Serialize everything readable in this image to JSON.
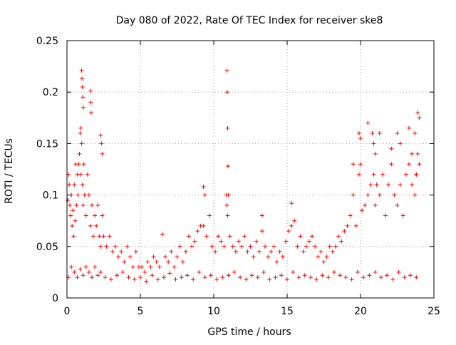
{
  "chart_data": {
    "type": "scatter",
    "title": "Day 080 of 2022, Rate Of TEC Index for receiver ske8",
    "xlabel": "GPS time / hours",
    "ylabel": "ROTI / TECUs",
    "xlim": [
      0,
      25
    ],
    "ylim": [
      0,
      0.25
    ],
    "xticks": [
      0,
      5,
      10,
      15,
      20,
      25
    ],
    "xtick_labels": [
      "0",
      "5",
      "10",
      "15",
      "20",
      "25"
    ],
    "yticks": [
      0,
      0.05,
      0.1,
      0.15,
      0.2,
      0.25
    ],
    "ytick_labels": [
      "0",
      "0.05",
      "0.1",
      "0.15",
      "0.2",
      "0.25"
    ],
    "grid": true,
    "marker": "+",
    "color": "#ff0000",
    "series": [
      {
        "name": "ROTI",
        "x": [
          0.05,
          0.1,
          0.15,
          0.2,
          0.25,
          0.3,
          0.35,
          0.4,
          0.45,
          0.5,
          0.55,
          0.6,
          0.65,
          0.7,
          0.75,
          0.8,
          0.85,
          0.9,
          0.95,
          1.0,
          1.05,
          1.1,
          1.15,
          1.2,
          1.3,
          1.4,
          1.5,
          1.6,
          1.7,
          1.8,
          1.9,
          2.0,
          2.1,
          2.2,
          2.3,
          2.4,
          2.5,
          2.7,
          2.9,
          3.1,
          3.3,
          3.5,
          3.7,
          3.9,
          4.1,
          4.3,
          4.5,
          4.7,
          4.9,
          5.1,
          5.3,
          5.5,
          5.7,
          5.9,
          6.1,
          6.3,
          6.5,
          6.7,
          6.9,
          7.1,
          7.3,
          7.5,
          7.7,
          7.9,
          8.1,
          8.3,
          8.5,
          8.7,
          8.9,
          9.1,
          9.3,
          9.5,
          9.7,
          9.9,
          10.1,
          10.3,
          10.5,
          10.7,
          10.85,
          10.9,
          10.95,
          11.1,
          11.3,
          11.5,
          11.7,
          11.9,
          12.1,
          12.3,
          12.5,
          12.7,
          12.9,
          13.1,
          13.3,
          13.5,
          13.7,
          13.9,
          14.1,
          14.3,
          14.5,
          14.7,
          14.9,
          15.1,
          15.3,
          15.5,
          15.7,
          15.9,
          16.1,
          16.3,
          16.5,
          16.7,
          16.9,
          17.1,
          17.3,
          17.5,
          17.7,
          17.9,
          18.1,
          18.3,
          18.5,
          18.7,
          18.9,
          19.1,
          19.3,
          19.5,
          19.7,
          19.9,
          20.0,
          20.1,
          20.3,
          20.5,
          20.7,
          20.9,
          21.0,
          21.1,
          21.3,
          21.5,
          21.7,
          21.9,
          22.1,
          22.3,
          22.5,
          22.7,
          22.9,
          23.1,
          23.3,
          23.5,
          23.7,
          23.8,
          23.9,
          24.0,
          0.1,
          0.3,
          0.5,
          0.7,
          0.9,
          1.1,
          1.3,
          1.5,
          1.7,
          1.9,
          2.1,
          2.3,
          2.6,
          3.0,
          3.4,
          3.8,
          4.2,
          4.6,
          5.0,
          5.4,
          5.8,
          6.2,
          6.6,
          7.0,
          7.4,
          7.8,
          8.2,
          8.6,
          9.0,
          9.4,
          9.8,
          10.2,
          10.6,
          11.0,
          11.4,
          11.8,
          12.2,
          12.6,
          13.0,
          13.4,
          13.8,
          14.2,
          14.6,
          15.0,
          15.4,
          15.8,
          16.2,
          16.6,
          17.0,
          17.4,
          17.8,
          18.2,
          18.6,
          19.0,
          19.4,
          19.8,
          20.2,
          20.6,
          21.0,
          21.4,
          21.8,
          22.2,
          22.6,
          23.0,
          23.4,
          23.8,
          1.0,
          1.02,
          1.05,
          1.08,
          1.12,
          0.95,
          1.6,
          1.62,
          1.65,
          2.3,
          2.35,
          2.4,
          9.3,
          9.4,
          10.9,
          10.92,
          10.95,
          10.97,
          11.0,
          13.3,
          15.3,
          19.5,
          19.9,
          20.0,
          20.5,
          20.8,
          20.9,
          21.0,
          21.3,
          22.1,
          22.5,
          22.7,
          23.3,
          23.5,
          23.7,
          23.8,
          23.9,
          24.0
        ],
        "y": [
          0.095,
          0.12,
          0.11,
          0.09,
          0.08,
          0.1,
          0.07,
          0.085,
          0.06,
          0.11,
          0.075,
          0.13,
          0.09,
          0.12,
          0.1,
          0.13,
          0.14,
          0.16,
          0.12,
          0.15,
          0.11,
          0.09,
          0.13,
          0.1,
          0.08,
          0.12,
          0.1,
          0.07,
          0.09,
          0.06,
          0.08,
          0.07,
          0.09,
          0.06,
          0.05,
          0.08,
          0.06,
          0.05,
          0.06,
          0.045,
          0.05,
          0.04,
          0.045,
          0.035,
          0.05,
          0.04,
          0.03,
          0.045,
          0.03,
          0.03,
          0.025,
          0.035,
          0.03,
          0.04,
          0.035,
          0.03,
          0.062,
          0.04,
          0.035,
          0.045,
          0.03,
          0.04,
          0.05,
          0.035,
          0.045,
          0.06,
          0.05,
          0.055,
          0.065,
          0.07,
          0.07,
          0.06,
          0.08,
          0.05,
          0.045,
          0.06,
          0.055,
          0.05,
          0.1,
          0.09,
          0.08,
          0.06,
          0.05,
          0.045,
          0.055,
          0.05,
          0.06,
          0.045,
          0.05,
          0.04,
          0.055,
          0.045,
          0.065,
          0.05,
          0.04,
          0.045,
          0.05,
          0.035,
          0.045,
          0.04,
          0.055,
          0.065,
          0.07,
          0.075,
          0.05,
          0.06,
          0.045,
          0.05,
          0.055,
          0.06,
          0.05,
          0.04,
          0.045,
          0.035,
          0.04,
          0.05,
          0.045,
          0.05,
          0.06,
          0.055,
          0.065,
          0.07,
          0.08,
          0.1,
          0.07,
          0.12,
          0.13,
          0.085,
          0.09,
          0.1,
          0.11,
          0.12,
          0.09,
          0.11,
          0.1,
          0.12,
          0.08,
          0.11,
          0.13,
          0.1,
          0.09,
          0.11,
          0.08,
          0.12,
          0.13,
          0.11,
          0.1,
          0.12,
          0.14,
          0.13,
          0.02,
          0.03,
          0.025,
          0.02,
          0.028,
          0.022,
          0.03,
          0.025,
          0.02,
          0.03,
          0.022,
          0.025,
          0.02,
          0.018,
          0.022,
          0.025,
          0.02,
          0.018,
          0.02,
          0.016,
          0.022,
          0.018,
          0.02,
          0.024,
          0.018,
          0.02,
          0.022,
          0.018,
          0.025,
          0.02,
          0.022,
          0.018,
          0.02,
          0.022,
          0.025,
          0.02,
          0.018,
          0.022,
          0.02,
          0.025,
          0.018,
          0.02,
          0.022,
          0.018,
          0.025,
          0.02,
          0.022,
          0.02,
          0.018,
          0.022,
          0.02,
          0.025,
          0.022,
          0.02,
          0.018,
          0.025,
          0.02,
          0.022,
          0.025,
          0.02,
          0.022,
          0.018,
          0.025,
          0.02,
          0.022,
          0.02,
          0.221,
          0.213,
          0.205,
          0.195,
          0.185,
          0.165,
          0.201,
          0.19,
          0.18,
          0.158,
          0.15,
          0.14,
          0.108,
          0.1,
          0.221,
          0.2,
          0.165,
          0.128,
          0.1,
          0.08,
          0.092,
          0.13,
          0.16,
          0.155,
          0.17,
          0.16,
          0.15,
          0.14,
          0.16,
          0.145,
          0.16,
          0.15,
          0.165,
          0.14,
          0.16,
          0.12,
          0.18,
          0.175
        ]
      }
    ]
  }
}
